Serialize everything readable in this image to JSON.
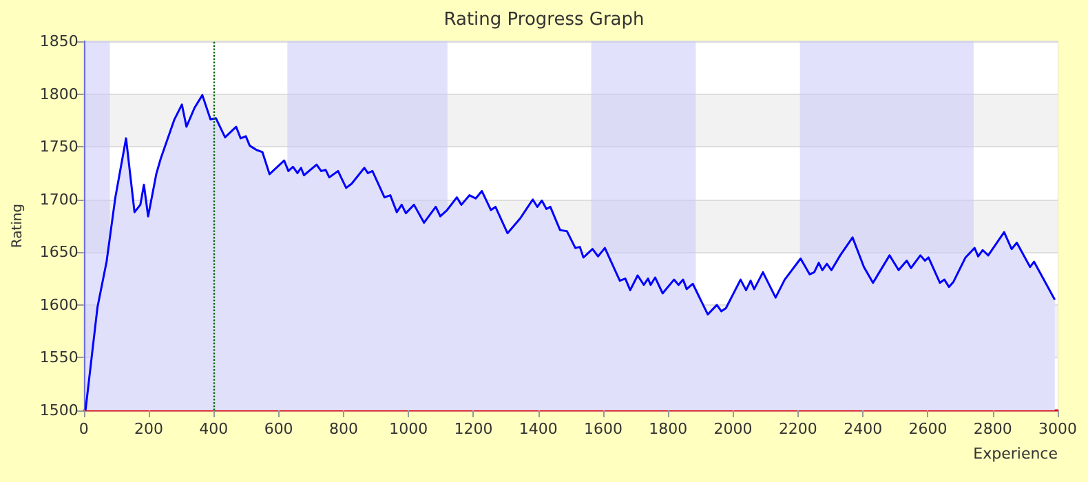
{
  "chart_data": {
    "type": "area",
    "title": "Rating Progress Graph",
    "xlabel": "Experience",
    "ylabel": "Rating",
    "x": [
      5,
      42,
      70,
      97,
      130,
      156,
      174,
      185,
      198,
      223,
      237,
      279,
      302,
      316,
      341,
      365,
      390,
      407,
      435,
      469,
      483,
      499,
      511,
      532,
      550,
      572,
      617,
      630,
      644,
      658,
      669,
      678,
      717,
      731,
      745,
      756,
      783,
      808,
      825,
      864,
      875,
      889,
      926,
      944,
      964,
      979,
      992,
      1017,
      1048,
      1084,
      1098,
      1119,
      1149,
      1163,
      1188,
      1207,
      1226,
      1254,
      1268,
      1305,
      1344,
      1383,
      1397,
      1411,
      1425,
      1437,
      1467,
      1488,
      1514,
      1528,
      1539,
      1567,
      1584,
      1605,
      1651,
      1668,
      1683,
      1706,
      1725,
      1738,
      1746,
      1760,
      1783,
      1818,
      1832,
      1846,
      1857,
      1876,
      1922,
      1950,
      1964,
      1978,
      2023,
      2040,
      2054,
      2065,
      2092,
      2131,
      2159,
      2208,
      2236,
      2250,
      2264,
      2275,
      2289,
      2303,
      2330,
      2368,
      2403,
      2431,
      2482,
      2510,
      2535,
      2548,
      2577,
      2591,
      2602,
      2637,
      2651,
      2665,
      2679,
      2716,
      2744,
      2755,
      2769,
      2786,
      2835,
      2858,
      2874,
      2915,
      2927,
      2991
    ],
    "series": [
      {
        "color": "#0000ff",
        "values": [
          1500,
          1598,
          1641,
          1702,
          1758,
          1688,
          1695,
          1714,
          1684,
          1724,
          1739,
          1776,
          1790,
          1769,
          1787,
          1799,
          1776,
          1777,
          1759,
          1769,
          1758,
          1760,
          1751,
          1747,
          1745,
          1724,
          1737,
          1727,
          1731,
          1725,
          1730,
          1723,
          1733,
          1727,
          1728,
          1721,
          1727,
          1711,
          1715,
          1730,
          1725,
          1727,
          1702,
          1704,
          1688,
          1695,
          1687,
          1695,
          1678,
          1693,
          1684,
          1690,
          1702,
          1695,
          1704,
          1701,
          1708,
          1690,
          1693,
          1668,
          1682,
          1700,
          1693,
          1699,
          1691,
          1693,
          1671,
          1670,
          1654,
          1655,
          1645,
          1653,
          1646,
          1654,
          1623,
          1625,
          1614,
          1628,
          1619,
          1625,
          1619,
          1626,
          1611,
          1624,
          1619,
          1624,
          1615,
          1620,
          1591,
          1600,
          1594,
          1597,
          1624,
          1614,
          1623,
          1615,
          1631,
          1607,
          1624,
          1644,
          1629,
          1631,
          1640,
          1633,
          1639,
          1633,
          1647,
          1664,
          1636,
          1621,
          1647,
          1633,
          1642,
          1635,
          1647,
          1642,
          1645,
          1621,
          1624,
          1617,
          1622,
          1645,
          1654,
          1646,
          1652,
          1647,
          1669,
          1653,
          1659,
          1636,
          1641,
          1605
        ]
      }
    ],
    "xlim": [
      0,
      3000
    ],
    "xticks": [
      0,
      200,
      400,
      600,
      800,
      1000,
      1200,
      1400,
      1600,
      1800,
      2000,
      2200,
      2400,
      2600,
      2800,
      3000
    ],
    "ylim": [
      1500,
      1850
    ],
    "yticks": [
      1500,
      1550,
      1600,
      1650,
      1700,
      1750,
      1800,
      1850
    ],
    "grid": "y",
    "marker": "none",
    "line_style": "solid",
    "ref_lines": [
      {
        "axis": "x",
        "value": 400,
        "color": "#006600",
        "line_style": "dotted"
      }
    ],
    "bands": [
      {
        "axis": "x",
        "from": 0,
        "to": 80,
        "color": "#c8c8f8"
      },
      {
        "axis": "x",
        "from": 627,
        "to": 1120,
        "color": "#c8c8f8"
      },
      {
        "axis": "x",
        "from": 1563,
        "to": 1885,
        "color": "#c8c8f8"
      },
      {
        "axis": "x",
        "from": 2206,
        "to": 2741,
        "color": "#c8c8f8"
      }
    ]
  }
}
